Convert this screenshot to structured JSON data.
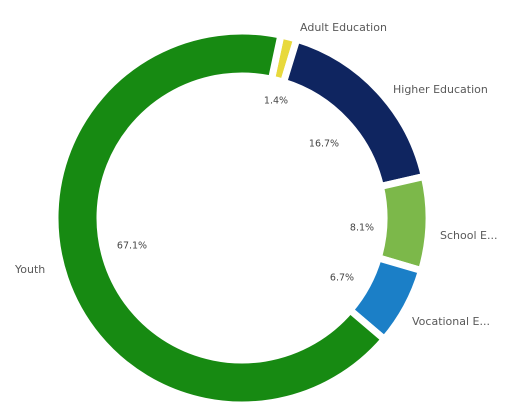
{
  "chart_data": {
    "type": "donut",
    "categories": [
      "Adult Education",
      "Higher Education",
      "School E...",
      "Vocational E...",
      "Youth"
    ],
    "values": [
      1.4,
      16.7,
      8.1,
      6.7,
      67.1
    ],
    "value_labels": [
      "1.4%",
      "16.7%",
      "8.1%",
      "6.7%",
      "67.1%"
    ],
    "colors": [
      "#e8d93c",
      "#0f2560",
      "#7cb84a",
      "#1b7fc7",
      "#178a12"
    ]
  }
}
